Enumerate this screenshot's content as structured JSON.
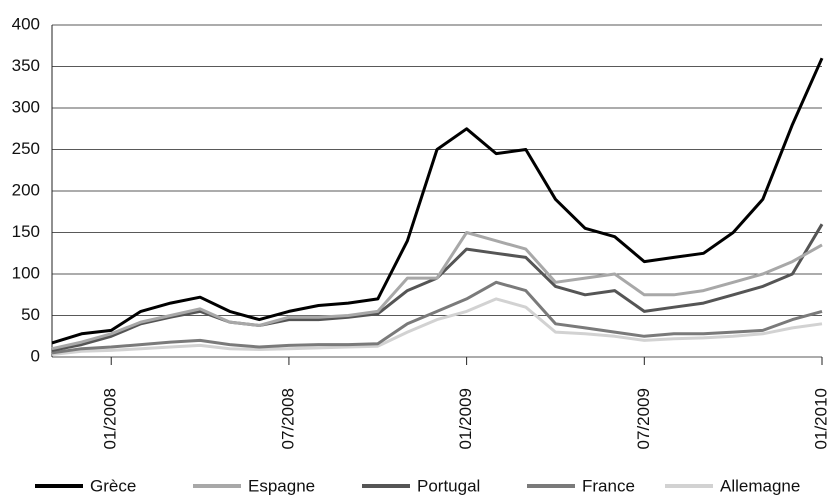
{
  "chart_data": {
    "type": "line",
    "x": [
      "11/2007",
      "12/2007",
      "01/2008",
      "02/2008",
      "03/2008",
      "04/2008",
      "05/2008",
      "06/2008",
      "07/2008",
      "08/2008",
      "09/2008",
      "10/2008",
      "11/2008",
      "12/2008",
      "01/2009",
      "02/2009",
      "03/2009",
      "04/2009",
      "05/2009",
      "06/2009",
      "07/2009",
      "08/2009",
      "09/2009",
      "10/2009",
      "11/2009",
      "12/2009",
      "01/2010"
    ],
    "xlim": [
      "11/2007",
      "01/2010"
    ],
    "xticks": [
      "01/2008",
      "07/2008",
      "01/2009",
      "07/2009",
      "01/2010"
    ],
    "ylim": [
      0,
      400
    ],
    "yticks": [
      0,
      50,
      100,
      150,
      200,
      250,
      300,
      350,
      400
    ],
    "grid": true,
    "legend": "bottom",
    "series": [
      {
        "name": "Grèce",
        "color": "#000000",
        "values": [
          17,
          28,
          32,
          55,
          65,
          72,
          55,
          45,
          55,
          62,
          65,
          70,
          140,
          250,
          275,
          245,
          250,
          190,
          155,
          145,
          115,
          120,
          125,
          150,
          190,
          280,
          360
        ]
      },
      {
        "name": "Espagne",
        "color": "#a8a8a8",
        "values": [
          10,
          18,
          28,
          42,
          50,
          58,
          42,
          38,
          48,
          48,
          50,
          55,
          95,
          95,
          150,
          140,
          130,
          90,
          95,
          100,
          75,
          75,
          80,
          90,
          100,
          115,
          135
        ]
      },
      {
        "name": "Portugal",
        "color": "#555555",
        "values": [
          8,
          15,
          25,
          40,
          48,
          55,
          42,
          38,
          45,
          45,
          48,
          52,
          80,
          95,
          130,
          125,
          120,
          85,
          75,
          80,
          55,
          60,
          65,
          75,
          85,
          100,
          160
        ]
      },
      {
        "name": "France",
        "color": "#7a7a7a",
        "values": [
          5,
          10,
          12,
          15,
          18,
          20,
          15,
          12,
          14,
          15,
          15,
          16,
          40,
          55,
          70,
          90,
          80,
          40,
          35,
          30,
          25,
          28,
          28,
          30,
          32,
          45,
          55
        ]
      },
      {
        "name": "Allemagne",
        "color": "#d2d2d2",
        "values": [
          3,
          7,
          8,
          10,
          12,
          14,
          10,
          9,
          10,
          11,
          12,
          13,
          30,
          45,
          55,
          70,
          60,
          30,
          28,
          25,
          20,
          22,
          23,
          25,
          28,
          35,
          40
        ]
      }
    ]
  }
}
